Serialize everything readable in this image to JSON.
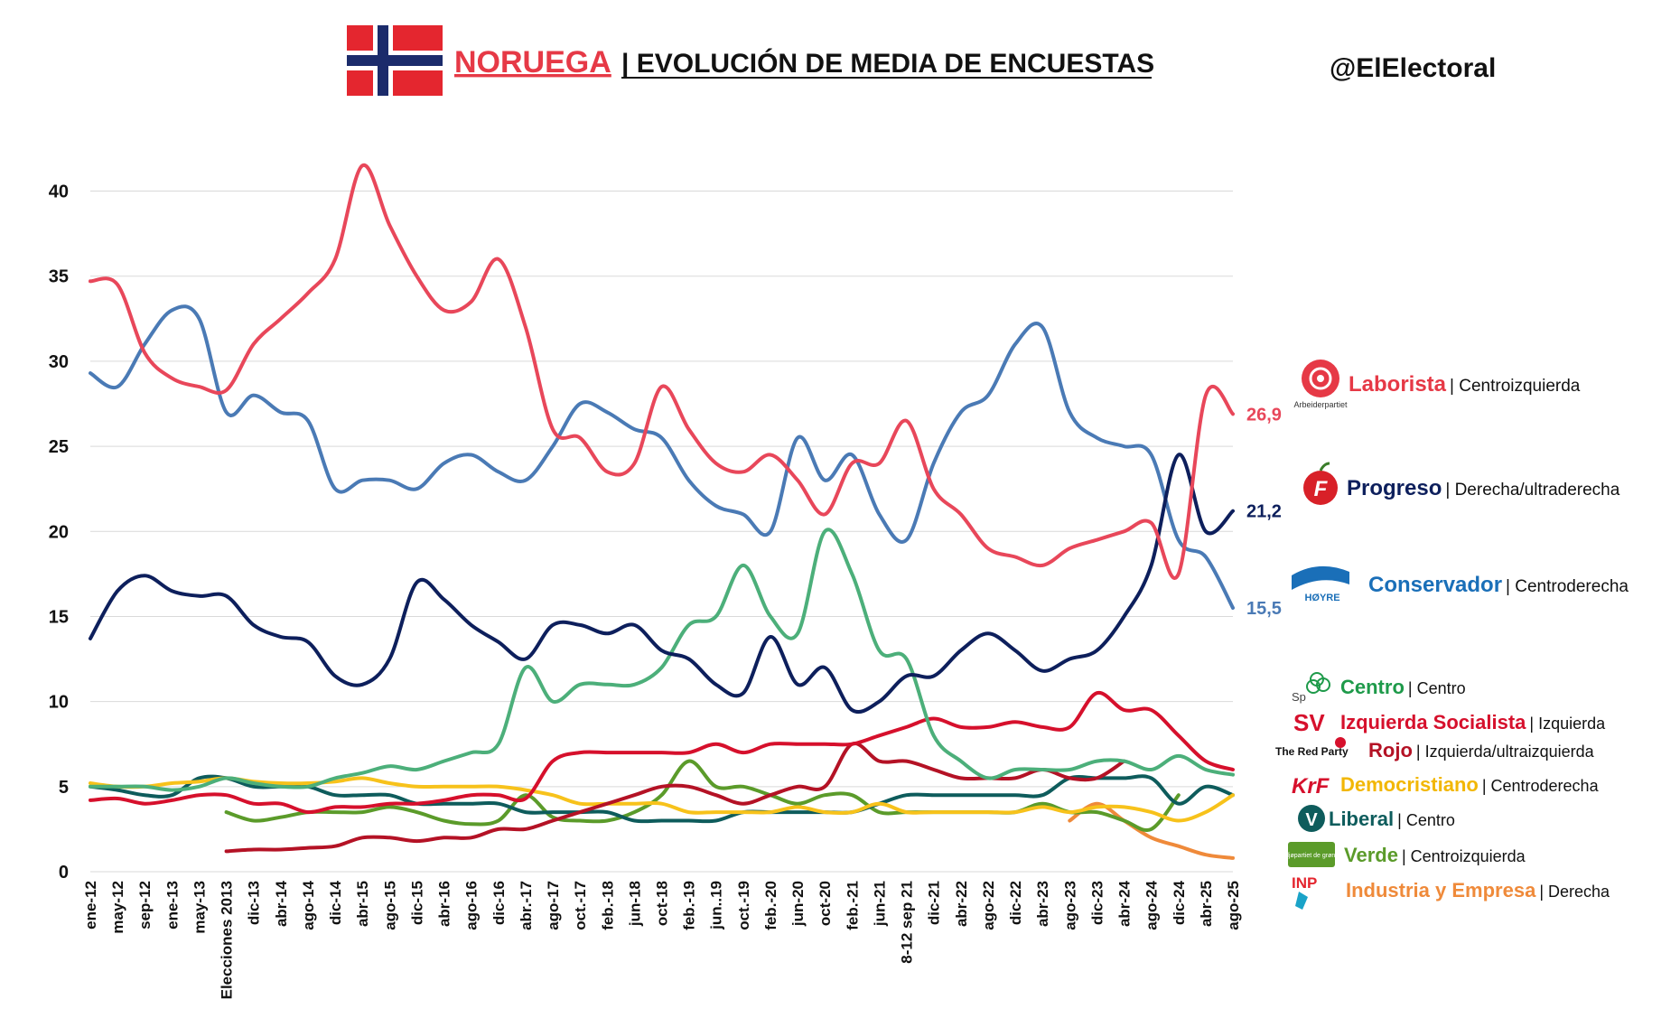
{
  "header": {
    "country": "NORUEGA",
    "title_rest": "| EVOLUCIÓN DE MEDIA DE ENCUESTAS",
    "handle": "@ElElectoral"
  },
  "chart_data": {
    "type": "line",
    "title": "NORUEGA| EVOLUCIÓN DE MEDIA DE ENCUESTAS",
    "ylim": [
      0,
      43
    ],
    "yticks": [
      0,
      5,
      10,
      15,
      20,
      25,
      30,
      35,
      40
    ],
    "grid": true,
    "x_tick_labels": [
      "ene-12",
      "may-12",
      "sep-12",
      "ene-13",
      "may-13",
      "Elecciones 2013",
      "dic-13",
      "abr-14",
      "ago-14",
      "dic-14",
      "abr-15",
      "ago-15",
      "dic-15",
      "abr-16",
      "ago-16",
      "dic-16",
      "abr.-17",
      "ago-17",
      "oct.-17",
      "feb.-18",
      "jun-18",
      "oct-18",
      "feb.-19",
      "jun..19",
      "oct.-19",
      "feb.-20",
      "jun-20",
      "oct-20",
      "feb.-21",
      "jun-21",
      "8-12 sep 21",
      "dic-21",
      "abr-22",
      "ago-22",
      "dic-22",
      "abr-23",
      "ago-23",
      "dic-23",
      "abr-24",
      "ago-24",
      "dic-24",
      "abr-25",
      "ago-25"
    ],
    "series": [
      {
        "name": "Laborista",
        "color": "#e8475a",
        "end_label": "26,9",
        "values": [
          34.7,
          34.5,
          30.5,
          29,
          28.5,
          28.3,
          31,
          32.5,
          34,
          36,
          41.5,
          38,
          35,
          33,
          33.5,
          36,
          32,
          26,
          25.5,
          23.5,
          24,
          28.5,
          26,
          24,
          23.5,
          24.5,
          23,
          21,
          24,
          24,
          26.5,
          22.5,
          21,
          19,
          18.5,
          18,
          19,
          19.5,
          20,
          20.5,
          17.5,
          28,
          26.9
        ]
      },
      {
        "name": "Progreso",
        "color": "#0d1f5c",
        "end_label": "21,2",
        "values": [
          13.7,
          16.5,
          17.4,
          16.5,
          16.2,
          16.2,
          14.5,
          13.8,
          13.5,
          11.5,
          11,
          12.5,
          17,
          16,
          14.5,
          13.5,
          12.5,
          14.5,
          14.5,
          14,
          14.5,
          13,
          12.5,
          11,
          10.5,
          13.8,
          11,
          12,
          9.5,
          10,
          11.5,
          11.5,
          13,
          14,
          13,
          11.8,
          12.5,
          13,
          15,
          18,
          24.5,
          20,
          21.2
        ]
      },
      {
        "name": "Conservador",
        "color": "#4a7ab5",
        "end_label": "15,5",
        "values": [
          29.3,
          28.5,
          31,
          33,
          32.5,
          27,
          28,
          27,
          26.5,
          22.5,
          23,
          23,
          22.5,
          24,
          24.5,
          23.5,
          23,
          25,
          27.5,
          27,
          26,
          25.5,
          23,
          21.5,
          21,
          20,
          25.5,
          23,
          24.5,
          21,
          19.5,
          24,
          27,
          28,
          31,
          32,
          27,
          25.5,
          25,
          24.5,
          19.5,
          18.5,
          15.5
        ]
      },
      {
        "name": "Centro",
        "color": "#4caf7a",
        "values": [
          5,
          5,
          5,
          4.8,
          5,
          5.5,
          5.2,
          5,
          5,
          5.5,
          5.8,
          6.2,
          6,
          6.5,
          7,
          7.5,
          12,
          10,
          11,
          11,
          11,
          12,
          14.5,
          15,
          18,
          15,
          14,
          20,
          17.5,
          13,
          12.5,
          8,
          6.5,
          5.5,
          6,
          6,
          6,
          6.5,
          6.5,
          6,
          6.8,
          6,
          5.7
        ]
      },
      {
        "name": "Izquierda Socialista",
        "color": "#d6102c",
        "values": [
          4.2,
          4.3,
          4,
          4.2,
          4.5,
          4.5,
          4,
          4,
          3.5,
          3.8,
          3.8,
          4,
          4,
          4.2,
          4.5,
          4.5,
          4.3,
          6.5,
          7,
          7,
          7,
          7,
          7,
          7.5,
          7,
          7.5,
          7.5,
          7.5,
          7.5,
          8,
          8.5,
          9,
          8.5,
          8.5,
          8.8,
          8.5,
          8.5,
          10.5,
          9.5,
          9.5,
          8,
          6.5,
          6
        ]
      },
      {
        "name": "Rojo",
        "color": "#b41225",
        "start_index": 5,
        "values": [
          1.2,
          1.3,
          1.3,
          1.4,
          1.5,
          2,
          2,
          1.8,
          2,
          2,
          2.5,
          2.5,
          3,
          3.5,
          4,
          4.5,
          5,
          5,
          4.5,
          4,
          4.5,
          5,
          5,
          7.5,
          6.5,
          6.5,
          6,
          5.5,
          5.5,
          5.5,
          6,
          5.5,
          5.5,
          6.5
        ]
      },
      {
        "name": "Democristiano",
        "color": "#f7c21b",
        "values": [
          5.2,
          5,
          5,
          5.2,
          5.3,
          5.5,
          5.3,
          5.2,
          5.2,
          5.3,
          5.5,
          5.2,
          5,
          5,
          5,
          5,
          4.8,
          4.5,
          4,
          4,
          4,
          4,
          3.5,
          3.5,
          3.5,
          3.5,
          3.8,
          3.5,
          3.5,
          4,
          3.5,
          3.5,
          3.5,
          3.5,
          3.5,
          3.8,
          3.5,
          3.8,
          3.8,
          3.5,
          3,
          3.5,
          4.5
        ]
      },
      {
        "name": "Liberal",
        "color": "#0e5c5c",
        "values": [
          5,
          4.8,
          4.5,
          4.5,
          5.5,
          5.5,
          5,
          5,
          5,
          4.5,
          4.5,
          4.5,
          4,
          4,
          4,
          4,
          3.5,
          3.5,
          3.5,
          3.5,
          3,
          3,
          3,
          3,
          3.5,
          3.5,
          3.5,
          3.5,
          3.5,
          4,
          4.5,
          4.5,
          4.5,
          4.5,
          4.5,
          4.5,
          5.5,
          5.5,
          5.5,
          5.5,
          4,
          5,
          4.5
        ]
      },
      {
        "name": "Verde",
        "color": "#5b9b2a",
        "start_index": 5,
        "values": [
          3.5,
          3,
          3.2,
          3.5,
          3.5,
          3.5,
          3.8,
          3.5,
          3,
          2.8,
          3,
          4.5,
          3.2,
          3,
          3,
          3.5,
          4.5,
          6.5,
          5,
          5,
          4.5,
          4,
          4.5,
          4.5,
          3.5,
          3.5,
          3.5,
          3.5,
          3.5,
          3.5,
          4,
          3.5,
          3.5,
          3,
          2.5,
          4.5
        ]
      },
      {
        "name": "Industria y Empresa",
        "color": "#ef8a3a",
        "start_index": 36,
        "values": [
          3,
          4,
          3,
          2,
          1.5,
          1,
          0.8
        ]
      }
    ],
    "legend": [
      {
        "name": "Laborista",
        "desc": "| Centroizquierda",
        "color": "#e63946",
        "logo": "rose-icon",
        "logo_text": "Arbeiderpartiet"
      },
      {
        "name": "Progreso",
        "desc": "| Derecha/ultraderecha",
        "color": "#0d1f5c",
        "logo": "f-apple-icon",
        "logo_text": "F"
      },
      {
        "name": "Conservador",
        "desc": "| Centroderecha",
        "color": "#1a6fb8",
        "logo": "hoyre-icon",
        "logo_text": "HØYRE"
      },
      {
        "name": "Centro",
        "desc": "| Centro",
        "color": "#1e9a4a",
        "logo": "sp-clover-icon",
        "logo_text": "Sp"
      },
      {
        "name": "Izquierda Socialista",
        "desc": "| Izquierda",
        "color": "#d6102c",
        "logo": "sv-icon",
        "logo_text": "SV"
      },
      {
        "name": "Rojo",
        "desc": "| Izquierda/ultraizquierda",
        "color": "#b41225",
        "logo": "red-party-icon",
        "logo_text": "The Red Party"
      },
      {
        "name": "Democristiano",
        "desc": "| Centroderecha",
        "color": "#f2b705",
        "logo": "krf-icon",
        "logo_text": "KrF"
      },
      {
        "name": "Liberal",
        "desc": "| Centro",
        "color": "#0e5c5c",
        "logo": "venstre-v-icon",
        "logo_text": "V"
      },
      {
        "name": "Verde",
        "desc": "| Centroizquierda",
        "color": "#5b9b2a",
        "logo": "mdg-icon",
        "logo_text": "miljøpartiet de grønne"
      },
      {
        "name": "Industria y Empresa",
        "desc": "| Derecha",
        "color": "#ef8a3a",
        "logo": "inp-icon",
        "logo_text": "INP"
      }
    ]
  }
}
